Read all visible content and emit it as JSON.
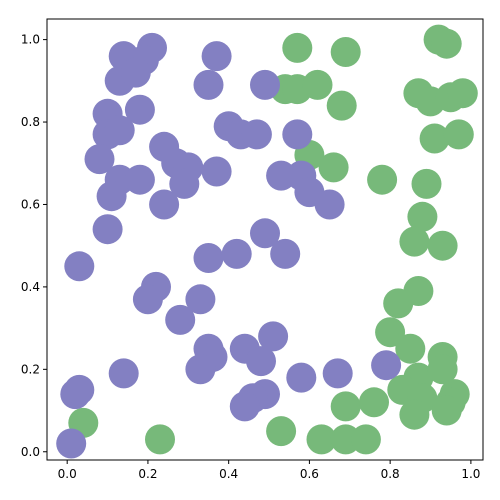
{
  "chart_data": {
    "type": "scatter",
    "title": "",
    "xlabel": "",
    "ylabel": "",
    "xlim": [
      -0.05,
      1.03
    ],
    "ylim": [
      -0.02,
      1.05
    ],
    "grid": false,
    "xticks": [
      0.0,
      0.2,
      0.4,
      0.6,
      0.8,
      1.0
    ],
    "yticks": [
      0.0,
      0.2,
      0.4,
      0.6,
      0.8,
      1.0
    ],
    "xtick_labels": [
      "0.0",
      "0.2",
      "0.4",
      "0.6",
      "0.8",
      "1.0"
    ],
    "ytick_labels": [
      "0.0",
      "0.2",
      "0.4",
      "0.6",
      "0.8",
      "1.0"
    ],
    "series": [
      {
        "color": "#77b97a",
        "points": [
          [
            0.57,
            0.98
          ],
          [
            0.69,
            0.97
          ],
          [
            0.92,
            1.0
          ],
          [
            0.94,
            0.99
          ],
          [
            0.54,
            0.88
          ],
          [
            0.57,
            0.88
          ],
          [
            0.62,
            0.89
          ],
          [
            0.68,
            0.84
          ],
          [
            0.87,
            0.87
          ],
          [
            0.9,
            0.85
          ],
          [
            0.95,
            0.86
          ],
          [
            0.98,
            0.87
          ],
          [
            0.91,
            0.76
          ],
          [
            0.97,
            0.77
          ],
          [
            0.6,
            0.72
          ],
          [
            0.66,
            0.69
          ],
          [
            0.78,
            0.66
          ],
          [
            0.89,
            0.65
          ],
          [
            0.88,
            0.57
          ],
          [
            0.86,
            0.51
          ],
          [
            0.93,
            0.5
          ],
          [
            0.87,
            0.39
          ],
          [
            0.82,
            0.36
          ],
          [
            0.8,
            0.29
          ],
          [
            0.85,
            0.25
          ],
          [
            0.93,
            0.23
          ],
          [
            0.87,
            0.18
          ],
          [
            0.93,
            0.2
          ],
          [
            0.83,
            0.15
          ],
          [
            0.88,
            0.13
          ],
          [
            0.96,
            0.14
          ],
          [
            0.95,
            0.12
          ],
          [
            0.86,
            0.09
          ],
          [
            0.94,
            0.1
          ],
          [
            0.69,
            0.11
          ],
          [
            0.76,
            0.12
          ],
          [
            0.04,
            0.07
          ],
          [
            0.23,
            0.03
          ],
          [
            0.53,
            0.05
          ],
          [
            0.63,
            0.03
          ],
          [
            0.69,
            0.03
          ],
          [
            0.74,
            0.03
          ]
        ]
      },
      {
        "color": "#8380c2",
        "points": [
          [
            0.14,
            0.96
          ],
          [
            0.21,
            0.98
          ],
          [
            0.37,
            0.96
          ],
          [
            0.19,
            0.95
          ],
          [
            0.13,
            0.9
          ],
          [
            0.17,
            0.92
          ],
          [
            0.35,
            0.89
          ],
          [
            0.49,
            0.89
          ],
          [
            0.1,
            0.82
          ],
          [
            0.18,
            0.83
          ],
          [
            0.1,
            0.77
          ],
          [
            0.13,
            0.78
          ],
          [
            0.4,
            0.79
          ],
          [
            0.43,
            0.77
          ],
          [
            0.47,
            0.77
          ],
          [
            0.57,
            0.77
          ],
          [
            0.24,
            0.74
          ],
          [
            0.27,
            0.7
          ],
          [
            0.3,
            0.69
          ],
          [
            0.08,
            0.71
          ],
          [
            0.13,
            0.66
          ],
          [
            0.18,
            0.66
          ],
          [
            0.37,
            0.68
          ],
          [
            0.53,
            0.67
          ],
          [
            0.58,
            0.67
          ],
          [
            0.29,
            0.65
          ],
          [
            0.11,
            0.62
          ],
          [
            0.6,
            0.63
          ],
          [
            0.65,
            0.6
          ],
          [
            0.24,
            0.6
          ],
          [
            0.1,
            0.54
          ],
          [
            0.49,
            0.53
          ],
          [
            0.03,
            0.45
          ],
          [
            0.35,
            0.47
          ],
          [
            0.42,
            0.48
          ],
          [
            0.54,
            0.48
          ],
          [
            0.22,
            0.4
          ],
          [
            0.2,
            0.37
          ],
          [
            0.33,
            0.37
          ],
          [
            0.28,
            0.32
          ],
          [
            0.51,
            0.28
          ],
          [
            0.35,
            0.25
          ],
          [
            0.44,
            0.25
          ],
          [
            0.36,
            0.23
          ],
          [
            0.48,
            0.22
          ],
          [
            0.33,
            0.2
          ],
          [
            0.14,
            0.19
          ],
          [
            0.58,
            0.18
          ],
          [
            0.67,
            0.19
          ],
          [
            0.79,
            0.21
          ],
          [
            0.49,
            0.14
          ],
          [
            0.46,
            0.13
          ],
          [
            0.44,
            0.11
          ],
          [
            0.02,
            0.14
          ],
          [
            0.03,
            0.15
          ],
          [
            0.01,
            0.02
          ]
        ]
      }
    ]
  }
}
